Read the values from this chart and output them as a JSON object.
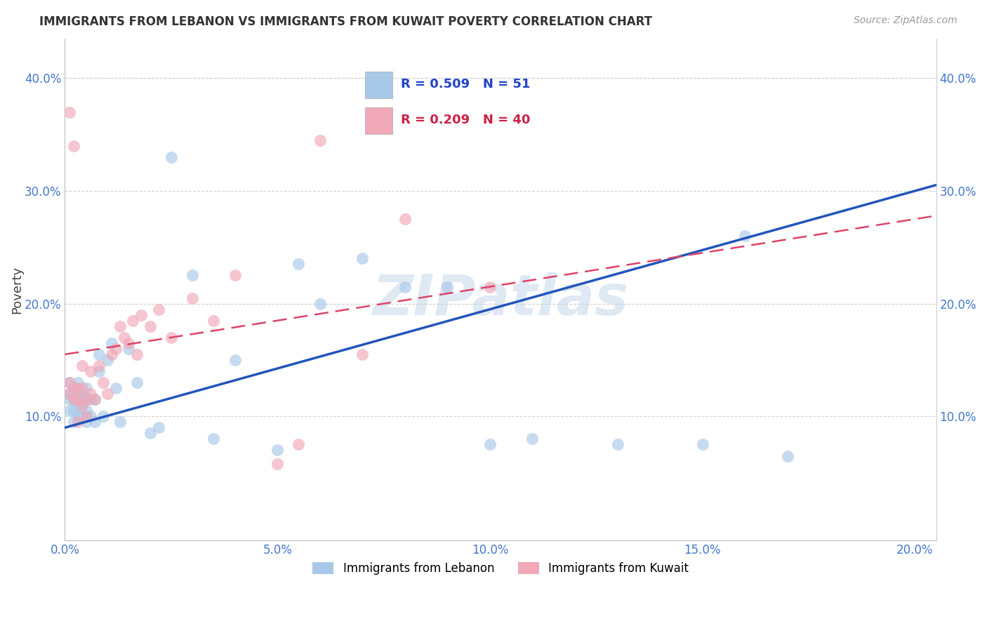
{
  "title": "IMMIGRANTS FROM LEBANON VS IMMIGRANTS FROM KUWAIT POVERTY CORRELATION CHART",
  "source": "Source: ZipAtlas.com",
  "ylabel": "Poverty",
  "xlim": [
    0.0,
    0.205
  ],
  "ylim": [
    -0.01,
    0.435
  ],
  "lebanon_R": 0.509,
  "lebanon_N": 51,
  "kuwait_R": 0.209,
  "kuwait_N": 40,
  "lebanon_color": "#a8c8e8",
  "kuwait_color": "#f0a8b8",
  "lebanon_line_color": "#2255bb",
  "kuwait_line_color": "#dd4466",
  "lebanon_line_slope": 1.05,
  "lebanon_line_intercept": 0.09,
  "kuwait_line_slope": 0.6,
  "kuwait_line_intercept": 0.155,
  "watermark": "ZIPatlas",
  "background_color": "#ffffff",
  "grid_color": "#d0d0d0",
  "lebanon_x": [
    0.001,
    0.001,
    0.001,
    0.001,
    0.002,
    0.002,
    0.002,
    0.002,
    0.003,
    0.003,
    0.003,
    0.003,
    0.003,
    0.004,
    0.004,
    0.004,
    0.005,
    0.005,
    0.005,
    0.005,
    0.006,
    0.006,
    0.007,
    0.007,
    0.008,
    0.008,
    0.009,
    0.01,
    0.011,
    0.012,
    0.013,
    0.015,
    0.017,
    0.02,
    0.022,
    0.025,
    0.03,
    0.035,
    0.04,
    0.05,
    0.055,
    0.06,
    0.07,
    0.08,
    0.09,
    0.1,
    0.11,
    0.13,
    0.15,
    0.16,
    0.17
  ],
  "lebanon_y": [
    0.105,
    0.115,
    0.12,
    0.13,
    0.095,
    0.105,
    0.115,
    0.125,
    0.1,
    0.11,
    0.115,
    0.12,
    0.13,
    0.1,
    0.11,
    0.12,
    0.095,
    0.105,
    0.115,
    0.125,
    0.1,
    0.115,
    0.095,
    0.115,
    0.14,
    0.155,
    0.1,
    0.15,
    0.165,
    0.125,
    0.095,
    0.16,
    0.13,
    0.085,
    0.09,
    0.33,
    0.225,
    0.08,
    0.15,
    0.07,
    0.235,
    0.2,
    0.24,
    0.215,
    0.215,
    0.075,
    0.08,
    0.075,
    0.075,
    0.26,
    0.065
  ],
  "kuwait_x": [
    0.001,
    0.001,
    0.001,
    0.002,
    0.002,
    0.002,
    0.003,
    0.003,
    0.003,
    0.004,
    0.004,
    0.004,
    0.005,
    0.005,
    0.006,
    0.006,
    0.007,
    0.008,
    0.009,
    0.01,
    0.011,
    0.012,
    0.013,
    0.014,
    0.015,
    0.016,
    0.017,
    0.018,
    0.02,
    0.022,
    0.025,
    0.03,
    0.035,
    0.04,
    0.05,
    0.055,
    0.06,
    0.07,
    0.08,
    0.1
  ],
  "kuwait_y": [
    0.12,
    0.13,
    0.37,
    0.115,
    0.125,
    0.34,
    0.095,
    0.115,
    0.125,
    0.11,
    0.125,
    0.145,
    0.1,
    0.115,
    0.14,
    0.12,
    0.115,
    0.145,
    0.13,
    0.12,
    0.155,
    0.16,
    0.18,
    0.17,
    0.165,
    0.185,
    0.155,
    0.19,
    0.18,
    0.195,
    0.17,
    0.205,
    0.185,
    0.225,
    0.058,
    0.075,
    0.345,
    0.155,
    0.275,
    0.215
  ]
}
